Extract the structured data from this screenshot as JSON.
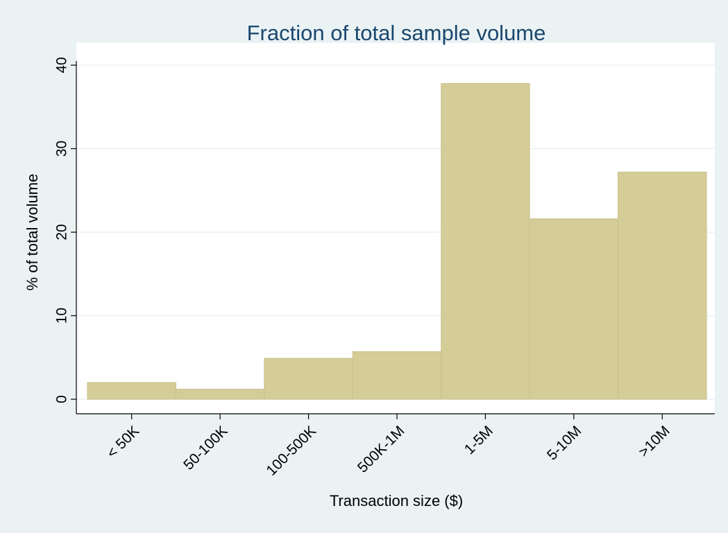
{
  "chart_data": {
    "type": "bar",
    "title": "Fraction of total sample volume",
    "xlabel": "Transaction size ($)",
    "ylabel": "% of total volume",
    "categories": [
      "< 50K",
      "50-100K",
      "100-500K",
      "500K-1M",
      "1-5M",
      "5-10M",
      ">10M"
    ],
    "values": [
      2.0,
      1.2,
      4.9,
      5.7,
      37.8,
      21.6,
      27.2
    ],
    "color": "#d5cd98",
    "ylim": [
      0,
      40
    ],
    "yticks": [
      0,
      10,
      20,
      30,
      40
    ],
    "grid": true
  }
}
